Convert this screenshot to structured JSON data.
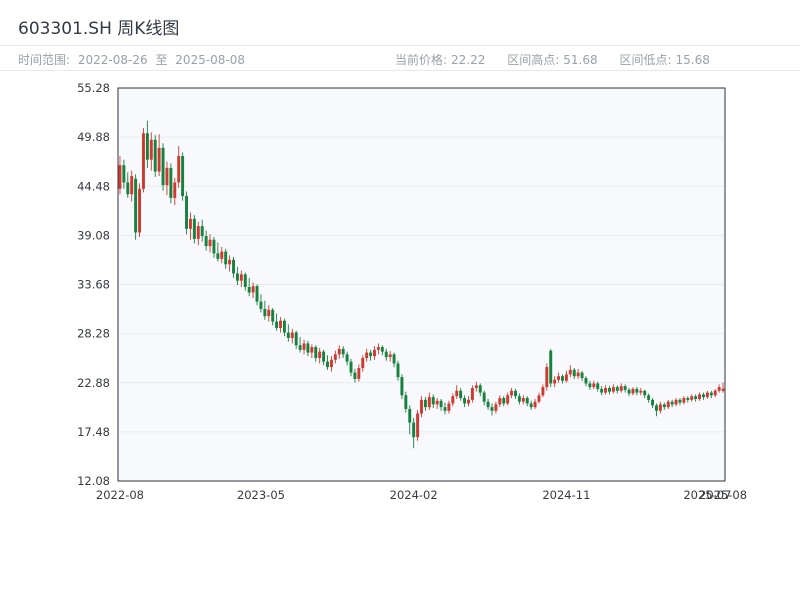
{
  "page": {
    "title": "603301.SH 周K线图"
  },
  "subheader": {
    "time_range": {
      "label": "时间范围:",
      "start": "2022-08-26",
      "separator": "至",
      "end": "2025-08-08"
    },
    "stats": [
      {
        "label": "当前价格:",
        "value": "22.22"
      },
      {
        "label": "区间高点:",
        "value": "51.68"
      },
      {
        "label": "区间低点:",
        "value": "15.68"
      }
    ]
  },
  "chart_data": {
    "type": "candlestick",
    "title": "603301.SH 周K线图",
    "frequency": "weekly",
    "x_range": [
      "2022-08-26",
      "2025-08-08"
    ],
    "current_price": 22.22,
    "period_high": 51.68,
    "period_low": 15.68,
    "grid": true,
    "legend": false,
    "y_axis": {
      "min": 12.08,
      "max": 55.28,
      "ticks": [
        55.28,
        49.88,
        44.48,
        39.08,
        33.68,
        28.28,
        22.88,
        17.48,
        12.08
      ]
    },
    "x_ticks": [
      {
        "index": 0,
        "label": "2022-08"
      },
      {
        "index": 36,
        "label": "2023-05"
      },
      {
        "index": 75,
        "label": "2024-02"
      },
      {
        "index": 114,
        "label": "2024-11"
      },
      {
        "index": 150,
        "label": "2025-07"
      },
      {
        "index": 154,
        "label": "2025-08"
      }
    ],
    "colors": {
      "up": "#cf3a30",
      "down": "#17813e",
      "grid": "#e7ecf2",
      "plot_bg": "#f7f9fc",
      "border": "#2e343b",
      "axis_text": "#363b42"
    },
    "candles_format": [
      "open",
      "high",
      "low",
      "close"
    ],
    "candles": [
      [
        44.2,
        47.8,
        43.6,
        46.8
      ],
      [
        46.8,
        47.4,
        44.2,
        44.9
      ],
      [
        44.9,
        46.0,
        43.2,
        43.6
      ],
      [
        43.6,
        46.2,
        42.8,
        45.6
      ],
      [
        45.3,
        45.8,
        38.6,
        39.4
      ],
      [
        39.4,
        44.8,
        38.9,
        44.2
      ],
      [
        44.2,
        50.9,
        43.8,
        50.3
      ],
      [
        50.3,
        51.68,
        46.5,
        47.4
      ],
      [
        47.4,
        50.4,
        46.2,
        49.6
      ],
      [
        49.6,
        50.1,
        45.5,
        46.1
      ],
      [
        46.1,
        50.2,
        45.6,
        48.7
      ],
      [
        48.7,
        49.2,
        44.0,
        44.6
      ],
      [
        44.6,
        47.2,
        43.5,
        46.5
      ],
      [
        46.5,
        47.0,
        42.6,
        43.2
      ],
      [
        43.2,
        45.4,
        42.4,
        44.9
      ],
      [
        44.9,
        48.9,
        44.3,
        47.8
      ],
      [
        47.8,
        48.2,
        42.9,
        43.4
      ],
      [
        43.4,
        43.9,
        39.2,
        39.8
      ],
      [
        39.8,
        41.6,
        38.6,
        40.9
      ],
      [
        40.9,
        41.3,
        38.2,
        38.7
      ],
      [
        38.7,
        40.6,
        38.0,
        40.1
      ],
      [
        40.1,
        40.8,
        38.4,
        39.0
      ],
      [
        39.0,
        39.6,
        37.4,
        37.9
      ],
      [
        37.9,
        39.2,
        37.2,
        38.6
      ],
      [
        38.6,
        38.9,
        36.6,
        37.1
      ],
      [
        37.1,
        38.3,
        36.2,
        36.5
      ],
      [
        36.5,
        37.8,
        36.0,
        37.3
      ],
      [
        37.3,
        37.6,
        35.4,
        35.9
      ],
      [
        35.9,
        36.9,
        35.1,
        36.4
      ],
      [
        36.4,
        36.7,
        34.4,
        34.9
      ],
      [
        34.9,
        35.6,
        33.6,
        34.1
      ],
      [
        34.1,
        35.2,
        33.4,
        34.8
      ],
      [
        34.8,
        35.0,
        33.0,
        33.4
      ],
      [
        33.4,
        34.4,
        32.4,
        32.8
      ],
      [
        32.8,
        33.9,
        32.2,
        33.5
      ],
      [
        33.5,
        33.7,
        31.4,
        31.8
      ],
      [
        31.8,
        32.6,
        30.6,
        31.0
      ],
      [
        31.0,
        31.9,
        29.8,
        30.2
      ],
      [
        30.2,
        31.4,
        29.6,
        30.9
      ],
      [
        30.9,
        31.1,
        29.2,
        29.6
      ],
      [
        29.6,
        30.5,
        28.6,
        28.9
      ],
      [
        28.9,
        30.1,
        28.4,
        29.7
      ],
      [
        29.7,
        29.9,
        28.0,
        28.4
      ],
      [
        28.4,
        29.3,
        27.4,
        27.8
      ],
      [
        27.8,
        28.8,
        27.2,
        28.4
      ],
      [
        28.4,
        28.6,
        26.6,
        27.0
      ],
      [
        27.0,
        27.9,
        26.2,
        26.5
      ],
      [
        26.5,
        27.6,
        26.0,
        27.2
      ],
      [
        27.2,
        27.5,
        25.8,
        26.2
      ],
      [
        26.2,
        27.1,
        25.6,
        26.8
      ],
      [
        26.8,
        27.0,
        25.2,
        25.6
      ],
      [
        25.6,
        26.7,
        25.0,
        26.3
      ],
      [
        26.3,
        26.5,
        24.8,
        25.2
      ],
      [
        25.2,
        25.9,
        24.3,
        24.6
      ],
      [
        24.6,
        25.8,
        24.1,
        25.4
      ],
      [
        25.4,
        26.4,
        25.0,
        26.0
      ],
      [
        26.0,
        27.0,
        25.5,
        26.6
      ],
      [
        26.6,
        26.9,
        25.6,
        26.0
      ],
      [
        26.0,
        26.3,
        24.8,
        25.2
      ],
      [
        25.2,
        25.5,
        23.6,
        24.0
      ],
      [
        24.0,
        24.4,
        22.9,
        23.3
      ],
      [
        23.3,
        24.9,
        23.0,
        24.5
      ],
      [
        24.5,
        25.9,
        24.1,
        25.6
      ],
      [
        25.6,
        26.6,
        25.2,
        26.2
      ],
      [
        26.2,
        26.5,
        25.3,
        25.8
      ],
      [
        25.8,
        26.9,
        25.4,
        26.5
      ],
      [
        26.5,
        27.2,
        26.0,
        26.8
      ],
      [
        26.8,
        27.0,
        25.9,
        26.3
      ],
      [
        26.3,
        26.6,
        25.3,
        25.7
      ],
      [
        25.7,
        26.4,
        25.2,
        26.0
      ],
      [
        26.0,
        26.2,
        24.6,
        25.0
      ],
      [
        25.0,
        25.3,
        23.1,
        23.5
      ],
      [
        23.5,
        23.8,
        21.1,
        21.5
      ],
      [
        21.5,
        21.9,
        19.6,
        20.0
      ],
      [
        20.0,
        20.4,
        17.2,
        18.5
      ],
      [
        18.5,
        19.0,
        15.68,
        16.9
      ],
      [
        16.9,
        19.9,
        16.5,
        19.5
      ],
      [
        19.5,
        21.4,
        19.1,
        21.0
      ],
      [
        21.0,
        21.3,
        19.8,
        20.2
      ],
      [
        20.2,
        21.8,
        19.9,
        21.3
      ],
      [
        21.3,
        21.6,
        20.1,
        20.5
      ],
      [
        20.5,
        21.2,
        20.0,
        20.9
      ],
      [
        20.9,
        21.1,
        19.8,
        20.2
      ],
      [
        20.2,
        20.7,
        19.4,
        19.8
      ],
      [
        19.8,
        20.9,
        19.5,
        20.6
      ],
      [
        20.6,
        21.7,
        20.3,
        21.4
      ],
      [
        21.4,
        22.6,
        21.1,
        22.0
      ],
      [
        22.0,
        22.3,
        20.9,
        21.2
      ],
      [
        21.2,
        21.5,
        20.2,
        20.6
      ],
      [
        20.6,
        21.4,
        20.3,
        21.0
      ],
      [
        21.0,
        22.6,
        20.7,
        22.3
      ],
      [
        22.3,
        23.0,
        21.9,
        22.6
      ],
      [
        22.6,
        22.8,
        21.4,
        21.8
      ],
      [
        21.8,
        22.0,
        20.4,
        20.8
      ],
      [
        20.8,
        21.1,
        19.9,
        20.2
      ],
      [
        20.2,
        20.6,
        19.3,
        19.8
      ],
      [
        19.8,
        20.8,
        19.5,
        20.5
      ],
      [
        20.5,
        21.5,
        20.2,
        21.2
      ],
      [
        21.2,
        21.4,
        20.3,
        20.6
      ],
      [
        20.6,
        21.8,
        20.4,
        21.5
      ],
      [
        21.5,
        22.3,
        21.2,
        22.0
      ],
      [
        22.0,
        22.2,
        21.1,
        21.4
      ],
      [
        21.4,
        21.7,
        20.5,
        20.8
      ],
      [
        20.8,
        21.5,
        20.5,
        21.2
      ],
      [
        21.2,
        21.4,
        20.3,
        20.6
      ],
      [
        20.6,
        20.9,
        19.9,
        20.2
      ],
      [
        20.2,
        21.1,
        20.0,
        20.8
      ],
      [
        20.8,
        21.8,
        20.6,
        21.5
      ],
      [
        21.5,
        22.7,
        21.3,
        22.4
      ],
      [
        22.4,
        25.0,
        22.0,
        24.6
      ],
      [
        26.4,
        26.6,
        22.4,
        22.8
      ],
      [
        22.8,
        23.6,
        22.4,
        23.2
      ],
      [
        23.2,
        24.0,
        22.9,
        23.6
      ],
      [
        23.6,
        23.8,
        22.8,
        23.1
      ],
      [
        23.1,
        24.2,
        22.9,
        23.8
      ],
      [
        23.8,
        24.8,
        23.5,
        24.3
      ],
      [
        24.3,
        24.5,
        23.3,
        23.6
      ],
      [
        23.6,
        24.4,
        23.3,
        24.0
      ],
      [
        24.0,
        24.2,
        23.1,
        23.4
      ],
      [
        23.4,
        23.6,
        22.5,
        22.8
      ],
      [
        22.8,
        23.1,
        22.1,
        22.4
      ],
      [
        22.4,
        23.1,
        22.2,
        22.8
      ],
      [
        22.8,
        23.0,
        21.9,
        22.2
      ],
      [
        22.2,
        22.5,
        21.5,
        21.8
      ],
      [
        21.8,
        22.6,
        21.6,
        22.3
      ],
      [
        22.3,
        22.5,
        21.6,
        21.9
      ],
      [
        21.9,
        22.7,
        21.7,
        22.4
      ],
      [
        22.4,
        22.6,
        21.7,
        22.0
      ],
      [
        22.0,
        22.8,
        21.8,
        22.5
      ],
      [
        22.5,
        22.7,
        21.8,
        22.1
      ],
      [
        22.1,
        22.3,
        21.4,
        21.7
      ],
      [
        21.7,
        22.4,
        21.5,
        22.2
      ],
      [
        22.2,
        22.4,
        21.5,
        21.8
      ],
      [
        21.8,
        22.3,
        21.5,
        22.0
      ],
      [
        22.0,
        22.1,
        21.2,
        21.5
      ],
      [
        21.5,
        21.7,
        20.7,
        21.0
      ],
      [
        21.0,
        21.2,
        20.1,
        20.4
      ],
      [
        20.4,
        20.6,
        19.2,
        19.8
      ],
      [
        19.8,
        20.8,
        19.5,
        20.5
      ],
      [
        20.5,
        20.7,
        19.9,
        20.2
      ],
      [
        20.2,
        21.0,
        20.0,
        20.8
      ],
      [
        20.8,
        21.0,
        20.2,
        20.5
      ],
      [
        20.5,
        21.2,
        20.3,
        21.0
      ],
      [
        21.0,
        21.2,
        20.4,
        20.7
      ],
      [
        20.7,
        21.4,
        20.5,
        21.2
      ],
      [
        21.2,
        21.4,
        20.7,
        21.0
      ],
      [
        21.0,
        21.6,
        20.8,
        21.4
      ],
      [
        21.4,
        21.6,
        20.8,
        21.1
      ],
      [
        21.1,
        21.8,
        20.9,
        21.6
      ],
      [
        21.6,
        21.8,
        21.0,
        21.3
      ],
      [
        21.3,
        22.0,
        21.1,
        21.8
      ],
      [
        21.8,
        22.0,
        21.2,
        21.5
      ],
      [
        21.5,
        22.2,
        21.3,
        22.0
      ],
      [
        22.0,
        22.7,
        21.8,
        22.4
      ],
      [
        22.0,
        22.9,
        21.8,
        22.22
      ]
    ]
  }
}
